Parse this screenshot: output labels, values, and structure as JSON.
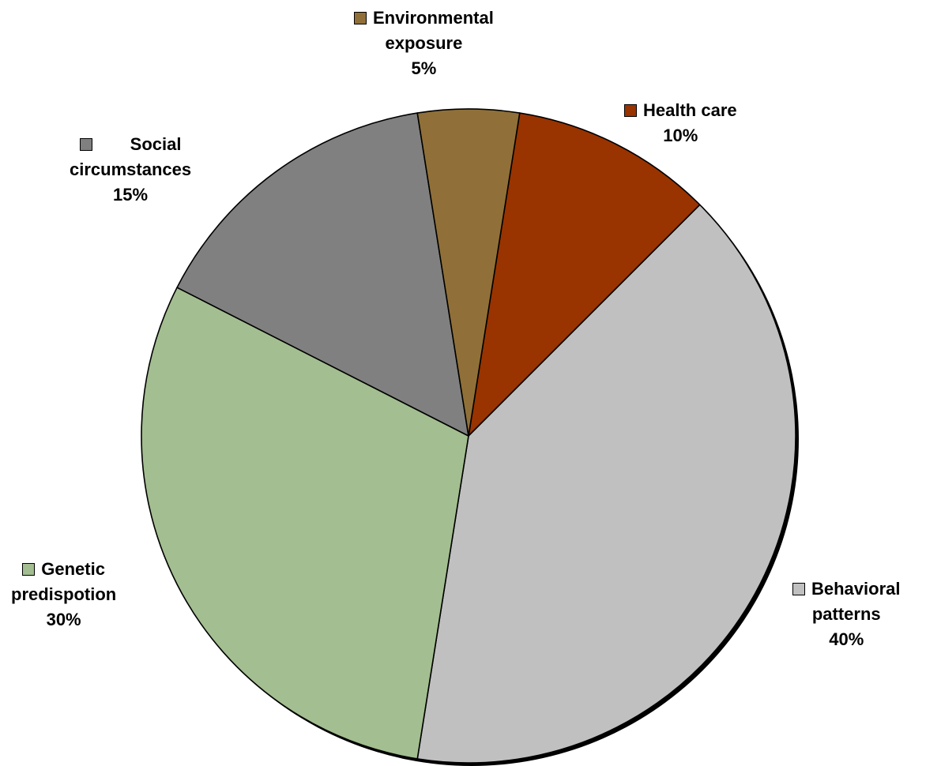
{
  "chart_data": {
    "type": "pie",
    "start_angle_deg": -81,
    "direction": "clockwise",
    "slices": [
      {
        "name": "Health care",
        "label_lines": [
          "Health care"
        ],
        "pct_label": "10%",
        "value": 10,
        "color": "#993300"
      },
      {
        "name": "Behavioral patterns",
        "label_lines": [
          "Behavioral",
          "patterns"
        ],
        "pct_label": "40%",
        "value": 40,
        "color": "#C0C0C0"
      },
      {
        "name": "Genetic predispotion",
        "label_lines": [
          "Genetic",
          "predispotion"
        ],
        "pct_label": "30%",
        "value": 30,
        "color": "#A3BE90"
      },
      {
        "name": "Social circumstances",
        "label_lines": [
          "Social",
          "circumstances"
        ],
        "pct_label": "15%",
        "value": 15,
        "color": "#808080"
      },
      {
        "name": "Environmental exposure",
        "label_lines": [
          "Environmental",
          "exposure"
        ],
        "pct_label": "5%",
        "value": 5,
        "color": "#907038"
      }
    ]
  }
}
